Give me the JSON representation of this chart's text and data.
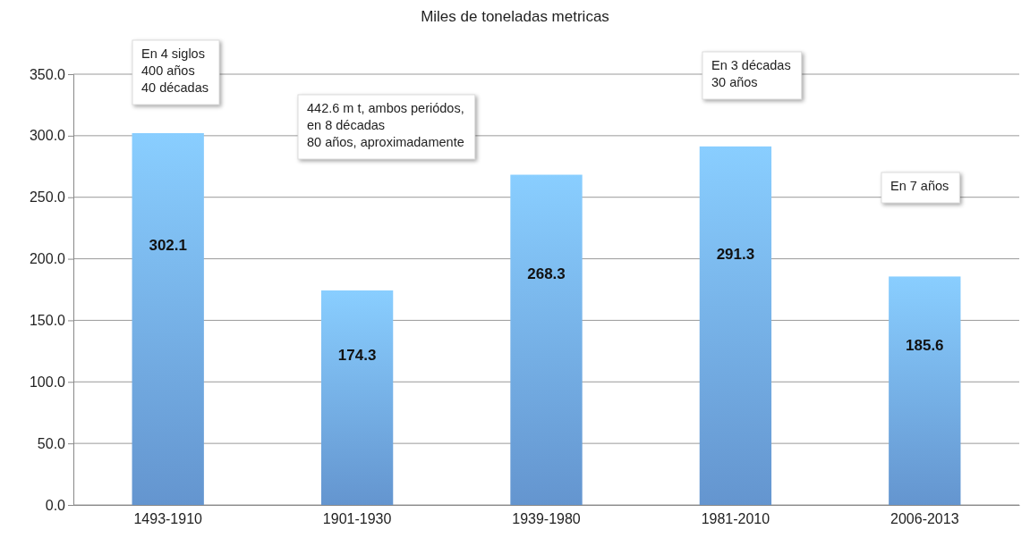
{
  "chart_data": {
    "type": "bar",
    "title": "Miles de toneladas metricas",
    "categories": [
      "1493-1910",
      "1901-1930",
      "1939-1980",
      "1981-2010",
      "2006-2013"
    ],
    "values": [
      302.1,
      174.3,
      268.3,
      291.3,
      185.6
    ],
    "color": "#6fa6e6",
    "ylim": [
      0,
      350
    ],
    "yticks": [
      {
        "value": 0,
        "label": "0.0"
      },
      {
        "value": 50,
        "label": "50.0"
      },
      {
        "value": 100,
        "label": "100.0"
      },
      {
        "value": 150,
        "label": "150.0"
      },
      {
        "value": 200,
        "label": "200.0"
      },
      {
        "value": 250,
        "label": "250.0"
      },
      {
        "value": 300,
        "label": "300.0"
      },
      {
        "value": 350,
        "label": "350.0"
      }
    ],
    "grid": "y",
    "data_labels": true,
    "annotations": [
      "En 4 siglos\n400 años\n40 décadas",
      "442.6 m t, ambos periódos,\nen 8 décadas\n80 años, aproximadamente",
      "En  3 décadas\n30 años",
      "En  7 años"
    ]
  }
}
